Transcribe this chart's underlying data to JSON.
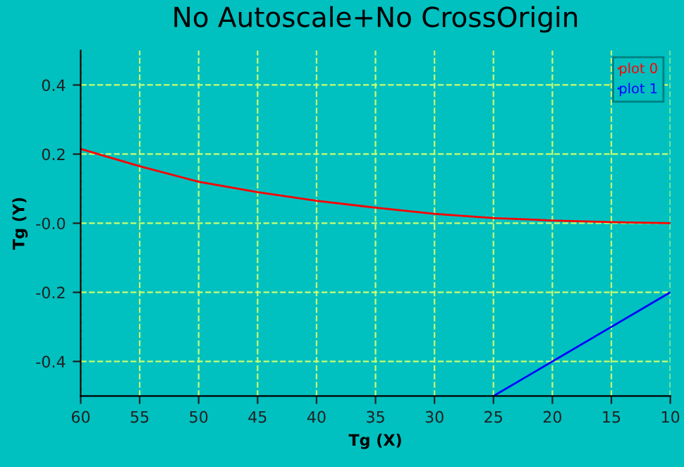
{
  "chart_data": {
    "type": "line",
    "title": "No Autoscale+No CrossOrigin",
    "xlabel": "Tg (X)",
    "ylabel": "Tg (Y)",
    "xlim": [
      60,
      10
    ],
    "xticks": [
      60,
      55,
      50,
      45,
      40,
      35,
      30,
      25,
      20,
      15,
      10
    ],
    "ylim": [
      -0.5,
      0.5
    ],
    "yticks": [
      -0.4,
      -0.2,
      {
        "value": 0,
        "label": "-0.0"
      },
      0.2,
      0.4
    ],
    "grid": true,
    "legend": "top right",
    "series": [
      {
        "name": "plot 0",
        "color": "#ff0000",
        "x": [
          60,
          55,
          50,
          45,
          40,
          35,
          30,
          25,
          20,
          15,
          10
        ],
        "values": [
          0.215,
          0.165,
          0.12,
          0.09,
          0.065,
          0.045,
          0.027,
          0.015,
          0.008,
          0.003,
          0.0
        ]
      },
      {
        "name": "plot 1",
        "color": "#0000ff",
        "x": [
          25,
          20,
          15,
          10
        ],
        "values": [
          -0.5,
          -0.4,
          -0.3,
          -0.2
        ]
      }
    ]
  }
}
